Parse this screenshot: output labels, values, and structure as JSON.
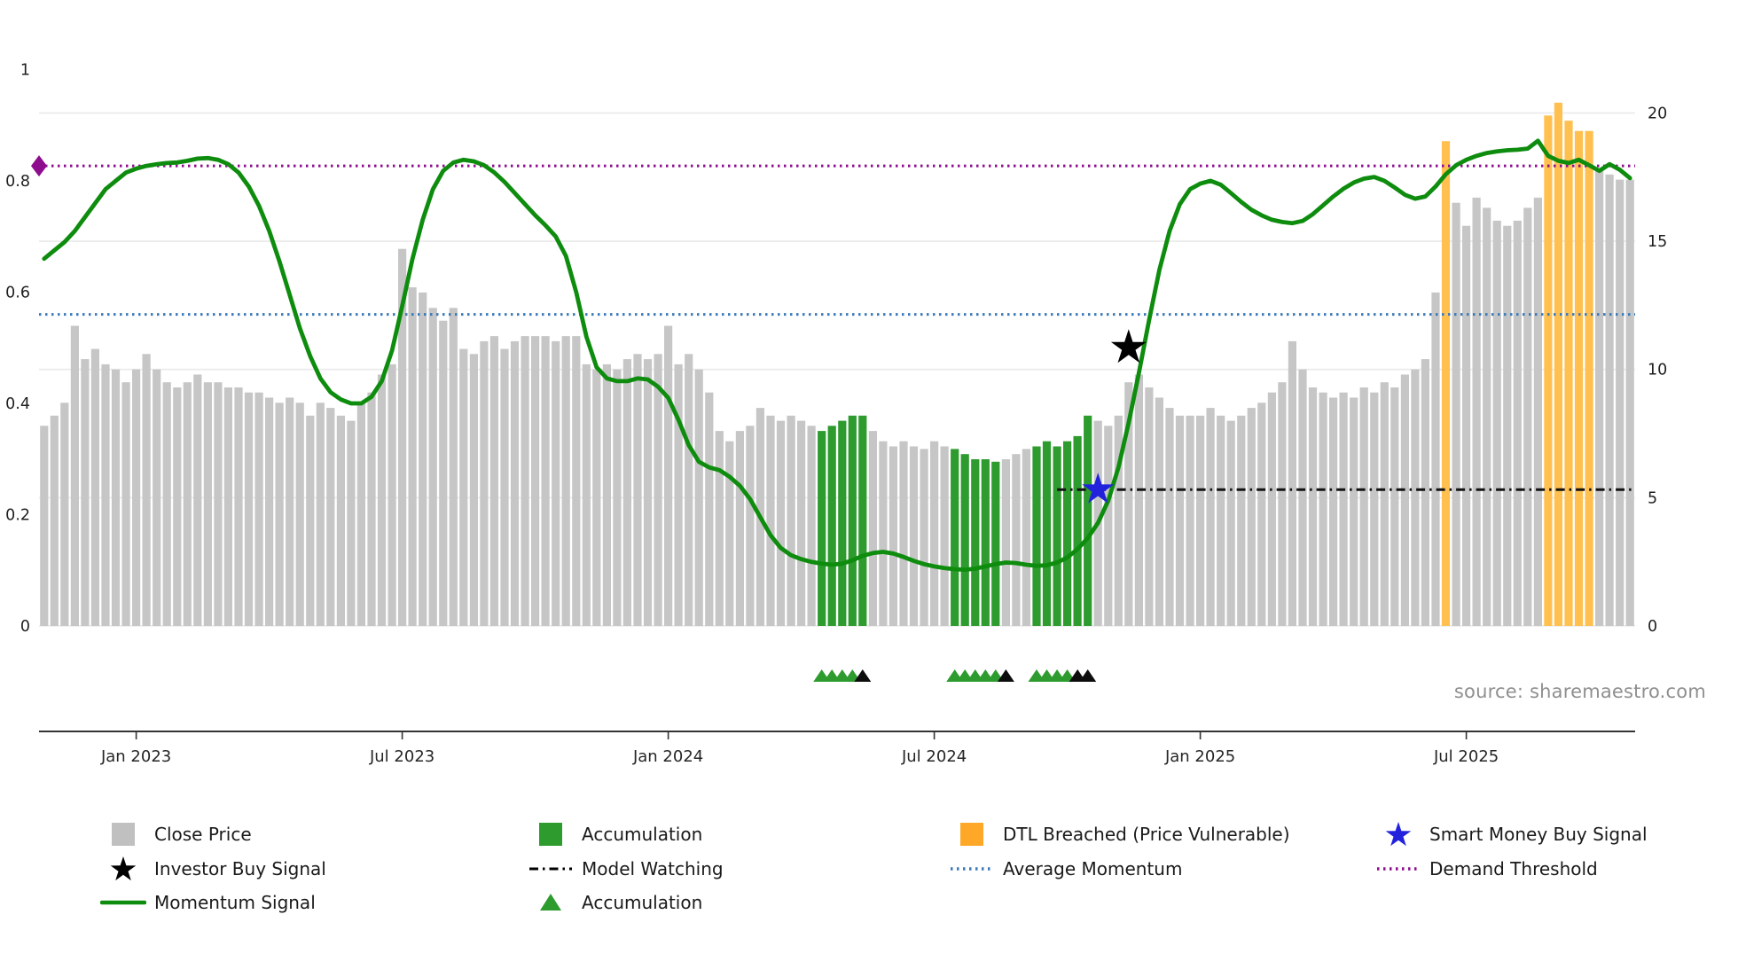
{
  "chart_data": {
    "type": "bar+line",
    "source": "source: sharemaestro.com",
    "x_ticks": [
      {
        "label": "Jan 2023",
        "week": 9
      },
      {
        "label": "Jul 2023",
        "week": 35
      },
      {
        "label": "Jan 2024",
        "week": 61
      },
      {
        "label": "Jul 2024",
        "week": 87
      },
      {
        "label": "Jan 2025",
        "week": 113
      },
      {
        "label": "Jul 2025",
        "week": 139
      }
    ],
    "left_axis": {
      "ticks": [
        0,
        0.2,
        0.4,
        0.6,
        0.8,
        1
      ],
      "labels": [
        "0",
        "0.2",
        "0.4",
        "0.6",
        "0.8",
        "1"
      ],
      "range": [
        0,
        1
      ]
    },
    "right_axis": {
      "ticks": [
        0,
        5,
        10,
        15,
        20
      ],
      "labels": [
        "0",
        "5",
        "10",
        "15",
        "20"
      ],
      "range": [
        0,
        20
      ]
    },
    "bars": {
      "series_name": "Close Price",
      "colors": {
        "gray": "#c6c6c6",
        "green": "#2e9b2e",
        "orange": "#ffc04f"
      },
      "green_weeks": [
        76,
        77,
        78,
        79,
        80,
        89,
        90,
        91,
        92,
        93,
        97,
        98,
        99,
        100,
        101,
        102
      ],
      "orange_weeks": [
        137,
        147,
        148,
        149,
        150,
        151
      ],
      "values": [
        7.8,
        8.2,
        8.7,
        11.7,
        10.4,
        10.8,
        10.2,
        10.0,
        9.5,
        10.0,
        10.6,
        10.0,
        9.5,
        9.3,
        9.5,
        9.8,
        9.5,
        9.5,
        9.3,
        9.3,
        9.1,
        9.1,
        8.9,
        8.7,
        8.9,
        8.7,
        8.2,
        8.7,
        8.5,
        8.2,
        8.0,
        8.7,
        9.1,
        9.8,
        10.2,
        14.7,
        13.2,
        13.0,
        12.4,
        11.9,
        12.4,
        10.8,
        10.6,
        11.1,
        11.3,
        10.8,
        11.1,
        11.3,
        11.3,
        11.3,
        11.1,
        11.3,
        11.3,
        10.2,
        10.0,
        10.2,
        10.0,
        10.4,
        10.6,
        10.4,
        10.6,
        11.7,
        10.2,
        10.6,
        10.0,
        9.1,
        7.6,
        7.2,
        7.6,
        7.8,
        8.5,
        8.2,
        8.0,
        8.2,
        8.0,
        7.8,
        7.6,
        7.8,
        8.0,
        8.2,
        8.2,
        7.6,
        7.2,
        7.0,
        7.2,
        7.0,
        6.9,
        7.2,
        7.0,
        6.9,
        6.7,
        6.5,
        6.5,
        6.4,
        6.5,
        6.7,
        6.9,
        7.0,
        7.2,
        7.0,
        7.2,
        7.4,
        8.2,
        8.0,
        7.8,
        8.2,
        9.5,
        9.8,
        9.3,
        8.9,
        8.5,
        8.2,
        8.2,
        8.2,
        8.5,
        8.2,
        8.0,
        8.2,
        8.5,
        8.7,
        9.1,
        9.5,
        11.1,
        10.0,
        9.3,
        9.1,
        8.9,
        9.1,
        8.9,
        9.3,
        9.1,
        9.5,
        9.3,
        9.8,
        10.0,
        10.4,
        13.0,
        18.9,
        16.5,
        15.6,
        16.7,
        16.3,
        15.8,
        15.6,
        15.8,
        16.3,
        16.7,
        19.9,
        20.4,
        19.7,
        19.3,
        19.3,
        17.8,
        17.6,
        17.4,
        17.4
      ]
    },
    "momentum": {
      "series_name": "Momentum Signal",
      "color": "#0e8c0e",
      "values": [
        0.66,
        0.675,
        0.69,
        0.71,
        0.735,
        0.76,
        0.785,
        0.8,
        0.815,
        0.822,
        0.827,
        0.83,
        0.832,
        0.833,
        0.836,
        0.84,
        0.841,
        0.838,
        0.83,
        0.815,
        0.79,
        0.755,
        0.71,
        0.655,
        0.595,
        0.535,
        0.485,
        0.445,
        0.42,
        0.407,
        0.4,
        0.4,
        0.412,
        0.44,
        0.495,
        0.575,
        0.66,
        0.73,
        0.785,
        0.818,
        0.833,
        0.838,
        0.835,
        0.828,
        0.815,
        0.798,
        0.778,
        0.758,
        0.738,
        0.72,
        0.7,
        0.665,
        0.6,
        0.52,
        0.465,
        0.445,
        0.44,
        0.44,
        0.445,
        0.443,
        0.43,
        0.41,
        0.37,
        0.325,
        0.295,
        0.285,
        0.28,
        0.268,
        0.252,
        0.228,
        0.195,
        0.163,
        0.14,
        0.127,
        0.12,
        0.115,
        0.112,
        0.11,
        0.112,
        0.118,
        0.126,
        0.131,
        0.133,
        0.13,
        0.124,
        0.117,
        0.111,
        0.107,
        0.104,
        0.102,
        0.101,
        0.103,
        0.107,
        0.111,
        0.114,
        0.113,
        0.11,
        0.108,
        0.109,
        0.114,
        0.123,
        0.138,
        0.158,
        0.185,
        0.225,
        0.285,
        0.365,
        0.455,
        0.55,
        0.64,
        0.71,
        0.758,
        0.785,
        0.795,
        0.8,
        0.793,
        0.778,
        0.762,
        0.748,
        0.738,
        0.73,
        0.726,
        0.724,
        0.728,
        0.74,
        0.756,
        0.772,
        0.786,
        0.797,
        0.804,
        0.807,
        0.8,
        0.788,
        0.775,
        0.768,
        0.772,
        0.79,
        0.812,
        0.828,
        0.838,
        0.845,
        0.85,
        0.853,
        0.855,
        0.856,
        0.858,
        0.872,
        0.845,
        0.836,
        0.832,
        0.838,
        0.828,
        0.818,
        0.83,
        0.82,
        0.805
      ]
    },
    "average_momentum": {
      "series_name": "Average Momentum",
      "value": 0.56,
      "color": "#3b7ab8",
      "style": "dotted"
    },
    "demand_threshold": {
      "series_name": "Demand Threshold",
      "value": 0.827,
      "color": "#8e0d8e",
      "style": "dotted",
      "marker": "diamond-left-edge"
    },
    "model_watching": {
      "series_name": "Model Watching",
      "value": 0.245,
      "start_week": 99,
      "color": "#141414",
      "style": "dashdot"
    },
    "investor_buy_signal": {
      "series_name": "Investor Buy Signal",
      "week": 106,
      "momentum_value": 0.5,
      "color": "#000000",
      "marker": "star"
    },
    "smart_money_buy_signal": {
      "series_name": "Smart Money Buy Signal",
      "week": 103,
      "momentum_value": 0.245,
      "color": "#2222dd",
      "marker": "star"
    },
    "accumulation_triangle_weeks": {
      "green": [
        76,
        77,
        78,
        79,
        89,
        90,
        91,
        92,
        93,
        97,
        98,
        99,
        100
      ],
      "black": [
        80,
        94,
        101,
        102
      ],
      "green_color": "#2e9b2e",
      "black_color": "#0d0d0d"
    }
  },
  "legend": {
    "items": [
      {
        "label": "Close Price",
        "swatch": "square",
        "color": "#c0c0c0"
      },
      {
        "label": "Investor Buy Signal",
        "swatch": "star",
        "color": "#000000"
      },
      {
        "label": "Momentum Signal",
        "swatch": "line",
        "color": "#0e8c0e"
      },
      {
        "label": "Accumulation",
        "swatch": "square",
        "color": "#2e9b2e"
      },
      {
        "label": "Model Watching",
        "swatch": "dashline",
        "color": "#000000"
      },
      {
        "label": "Accumulation",
        "swatch": "triangle",
        "color": "#2e9b2e"
      },
      {
        "label": "DTL Breached (Price Vulnerable)",
        "swatch": "square",
        "color": "#ffa827"
      },
      {
        "label": "Average Momentum",
        "swatch": "dotline",
        "color": "#3b7ab8"
      },
      {
        "label": "Smart Money Buy Signal",
        "swatch": "star",
        "color": "#2222dd"
      },
      {
        "label": "Demand Threshold",
        "swatch": "dotline",
        "color": "#8e0d8e"
      }
    ]
  }
}
